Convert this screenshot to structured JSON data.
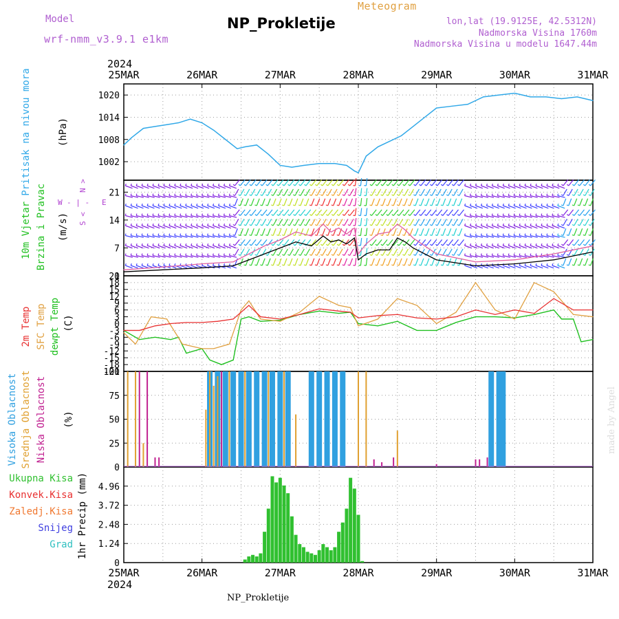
{
  "header": {
    "model_label": "Model",
    "model_name": "wrf-nmm_v3.9.1 e1km",
    "title": "NP_Prokletije",
    "kind": "Meteogram",
    "coords": "lon,lat (19.9125E, 42.5312N)",
    "elevation": "Nadmorska Visina 1760m",
    "model_elevation": "Nadmorska Visina u modelu 1647.44m"
  },
  "footer": {
    "station": "NP_Prokletije",
    "credit": "made by Angel"
  },
  "colors": {
    "pressure": "#30a8e8",
    "wind_speed": "#000000",
    "wind_gust": "#e060a0",
    "t2m": "#e83030",
    "tsfc": "#e0a040",
    "dewpt": "#20c020",
    "high_cloud": "#30a0e0",
    "mid_cloud": "#e0a030",
    "low_cloud": "#c02090",
    "precip": "#30c030",
    "conv_precip": "#e83030",
    "frz_precip": "#f07830",
    "snow": "#4040e0",
    "graupel": "#30c0c0",
    "purple_label": "#b040d0"
  },
  "chart_data": [
    {
      "type": "line",
      "panel": "pressure",
      "ylabel": "Pritisak na nivou mora",
      "unit": "(hPa)",
      "ylim": [
        997,
        1023
      ],
      "yticks": [
        1002,
        1008,
        1014,
        1020
      ],
      "x_axis": {
        "year": "2024",
        "ticks": [
          "25MAR",
          "26MAR",
          "27MAR",
          "28MAR",
          "29MAR",
          "30MAR",
          "31MAR"
        ],
        "range_days": [
          0,
          6
        ]
      },
      "series": [
        {
          "x": [
            0,
            0.1,
            0.25,
            0.4,
            0.55,
            0.7,
            0.85,
            1.0,
            1.15,
            1.3,
            1.45,
            1.55,
            1.7,
            1.85,
            2.0,
            2.15,
            2.3,
            2.5,
            2.7,
            2.85,
            2.95,
            3.0,
            3.1,
            3.25,
            3.4,
            3.55,
            3.7,
            3.85,
            4.0,
            4.2,
            4.4,
            4.6,
            4.8,
            5.0,
            5.2,
            5.4,
            5.6,
            5.8,
            6.0
          ],
          "y": [
            1006.5,
            1008.5,
            1011,
            1011.5,
            1012,
            1012.5,
            1013.5,
            1012.5,
            1010.5,
            1008,
            1005.5,
            1006,
            1006.5,
            1004,
            1001,
            1000.5,
            1001,
            1001.5,
            1001.5,
            1001,
            999.5,
            999,
            1003.5,
            1006,
            1007.5,
            1009,
            1011.5,
            1014,
            1016.5,
            1017,
            1017.5,
            1019.5,
            1020,
            1020.5,
            1019.5,
            1019.5,
            1019,
            1019.5,
            1018.5
          ]
        }
      ]
    },
    {
      "type": "line",
      "panel": "wind",
      "ylabel": "10m Vjetar",
      "ylabel2": "Brzina i Pravac",
      "unit": "(m/s)",
      "compass": {
        "n": "N",
        "s": "S",
        "w": "W",
        "e": "E"
      },
      "ylim": [
        0,
        24
      ],
      "yticks": [
        0,
        7,
        14,
        21
      ],
      "series": [
        {
          "name": "speed",
          "x": [
            0,
            0.5,
            1.0,
            1.4,
            1.6,
            1.8,
            2.0,
            2.2,
            2.4,
            2.55,
            2.65,
            2.75,
            2.85,
            2.95,
            3.0,
            3.1,
            3.25,
            3.4,
            3.5,
            3.6,
            3.7,
            4.0,
            4.5,
            5.0,
            5.5,
            6.0
          ],
          "y": [
            1,
            1.5,
            2,
            2.5,
            4,
            5.5,
            7,
            8.5,
            7.5,
            10,
            8.5,
            9,
            8,
            9.5,
            4,
            5.5,
            6.5,
            6.5,
            9.5,
            8.5,
            7,
            4,
            2.5,
            3,
            4,
            6
          ]
        },
        {
          "name": "gust",
          "x": [
            0,
            0.5,
            1.0,
            1.4,
            1.6,
            1.8,
            2.0,
            2.2,
            2.4,
            2.55,
            2.65,
            2.75,
            2.85,
            2.95,
            3.0,
            3.1,
            3.25,
            3.4,
            3.5,
            3.6,
            3.7,
            4.0,
            4.5,
            5.0,
            5.5,
            6.0
          ],
          "y": [
            1.5,
            2.2,
            3,
            3.5,
            5.5,
            7.5,
            9,
            11,
            10,
            13,
            11,
            12,
            10.5,
            12,
            5.5,
            8,
            10.5,
            11,
            13,
            11.5,
            9.5,
            5.5,
            3.5,
            4,
            5.5,
            7.5
          ]
        }
      ]
    },
    {
      "type": "line",
      "panel": "temperature",
      "ylabel": "2m Temp",
      "ylabel2": "SFC Temp",
      "ylabel3": "dewpt Temp",
      "unit": "(C)",
      "ylim": [
        -21,
        21
      ],
      "yticks": [
        -21,
        -18,
        -15,
        -12,
        -9,
        -6,
        -3,
        0,
        3,
        6,
        9,
        12,
        15,
        18,
        21
      ],
      "series": [
        {
          "name": "2m Temp",
          "x": [
            0,
            0.2,
            0.4,
            0.6,
            0.8,
            1.0,
            1.2,
            1.4,
            1.5,
            1.6,
            1.75,
            2.0,
            2.25,
            2.5,
            2.75,
            2.9,
            3.0,
            3.25,
            3.5,
            3.75,
            4.0,
            4.25,
            4.5,
            4.75,
            5.0,
            5.25,
            5.5,
            5.75,
            6.0
          ],
          "y": [
            -3,
            -3,
            -1,
            0,
            0.5,
            0.5,
            1,
            2,
            5,
            8,
            3,
            2,
            4,
            6.5,
            5.5,
            5,
            2.5,
            3.5,
            4,
            2.5,
            2,
            3,
            6,
            4,
            6,
            4.5,
            11,
            6,
            6
          ]
        },
        {
          "name": "SFC Temp",
          "x": [
            0,
            0.15,
            0.35,
            0.55,
            0.75,
            1.0,
            1.15,
            1.35,
            1.5,
            1.6,
            1.75,
            2.0,
            2.25,
            2.5,
            2.75,
            2.9,
            3.0,
            3.25,
            3.5,
            3.75,
            4.0,
            4.25,
            4.5,
            4.75,
            5.0,
            5.25,
            5.5,
            5.75,
            6.0
          ],
          "y": [
            -4,
            -9,
            3,
            2,
            -9,
            -11,
            -11,
            -9,
            6,
            10,
            2,
            1,
            5,
            12,
            8,
            7,
            -1,
            2,
            11,
            8,
            0,
            5,
            18,
            6,
            2,
            18,
            14,
            4,
            3
          ]
        },
        {
          "name": "dewpt Temp",
          "x": [
            0,
            0.2,
            0.4,
            0.6,
            0.7,
            0.8,
            1.0,
            1.1,
            1.25,
            1.4,
            1.5,
            1.6,
            1.75,
            2.0,
            2.25,
            2.5,
            2.75,
            2.9,
            3.0,
            3.25,
            3.5,
            3.75,
            4.0,
            4.25,
            4.5,
            4.75,
            5.0,
            5.25,
            5.5,
            5.6,
            5.75,
            5.85,
            6.0
          ],
          "y": [
            -3,
            -7,
            -6,
            -7,
            -6,
            -13,
            -11,
            -16,
            -18,
            -16,
            2,
            3,
            1,
            1.5,
            4,
            5.5,
            4.5,
            5,
            0,
            -1,
            1,
            -3,
            -3,
            0.5,
            3,
            3,
            2.5,
            4,
            6,
            2,
            2,
            -8,
            -7
          ]
        }
      ]
    },
    {
      "type": "bar",
      "panel": "clouds",
      "ylabel": "Visoka Oblacnost",
      "ylabel2": "Srednja Oblacnost",
      "ylabel3": "Niska Oblacnost",
      "unit": "(%)",
      "ylim": [
        0,
        100
      ],
      "yticks": [
        0,
        25,
        50,
        75,
        100
      ],
      "series": [
        {
          "name": "Visoka Oblacnost",
          "x": [
            1.1,
            1.2,
            1.3,
            1.4,
            1.5,
            1.6,
            1.7,
            1.8,
            1.9,
            2.0,
            2.1,
            2.4,
            2.5,
            2.6,
            2.7,
            2.8,
            4.7,
            4.8,
            4.85
          ],
          "y": [
            100,
            100,
            100,
            100,
            100,
            100,
            100,
            100,
            100,
            100,
            100,
            100,
            100,
            100,
            100,
            100,
            100,
            100,
            100
          ]
        },
        {
          "name": "Srednja Oblacnost",
          "x": [
            0.05,
            0.15,
            0.25,
            1.05,
            1.1,
            1.15,
            1.2,
            1.35,
            1.55,
            1.85,
            2.05,
            2.2,
            3.0,
            3.1,
            3.5
          ],
          "y": [
            100,
            100,
            25,
            60,
            100,
            85,
            95,
            100,
            100,
            100,
            100,
            55,
            100,
            100,
            38
          ]
        },
        {
          "name": "Niska Oblacnost",
          "x": [
            0.2,
            0.3,
            0.4,
            0.45,
            1.25,
            3.2,
            3.3,
            3.45,
            4.0,
            4.5,
            4.55,
            4.65
          ],
          "y": [
            100,
            100,
            10,
            10,
            100,
            8,
            5,
            10,
            3,
            8,
            8,
            10
          ]
        }
      ]
    },
    {
      "type": "bar",
      "panel": "precipitation",
      "ylabel": "1hr Precip",
      "unit": "(mm)",
      "ylim": [
        0,
        6.2
      ],
      "yticks": [
        0,
        1.24,
        2.48,
        3.72,
        4.96
      ],
      "legend": [
        "Ukupna Kisa",
        "Konvek.Kisa",
        "Zaledj.Kisa",
        "Snijeg",
        "Grad"
      ],
      "series": [
        {
          "name": "Ukupna Kisa",
          "x": [
            1.55,
            1.6,
            1.65,
            1.7,
            1.75,
            1.8,
            1.85,
            1.9,
            1.95,
            2.0,
            2.05,
            2.1,
            2.15,
            2.2,
            2.25,
            2.3,
            2.35,
            2.4,
            2.45,
            2.5,
            2.55,
            2.6,
            2.65,
            2.7,
            2.75,
            2.8,
            2.85,
            2.9,
            2.95,
            3.0,
            3.05
          ],
          "y": [
            0.2,
            0.4,
            0.5,
            0.4,
            0.6,
            2.0,
            3.5,
            5.6,
            5.2,
            5.5,
            5.0,
            4.5,
            3.0,
            1.8,
            1.2,
            1.0,
            0.7,
            0.6,
            0.5,
            0.8,
            1.2,
            1.0,
            0.8,
            1.0,
            2.0,
            2.6,
            3.5,
            5.5,
            4.8,
            3.1,
            0.1
          ]
        }
      ]
    }
  ]
}
